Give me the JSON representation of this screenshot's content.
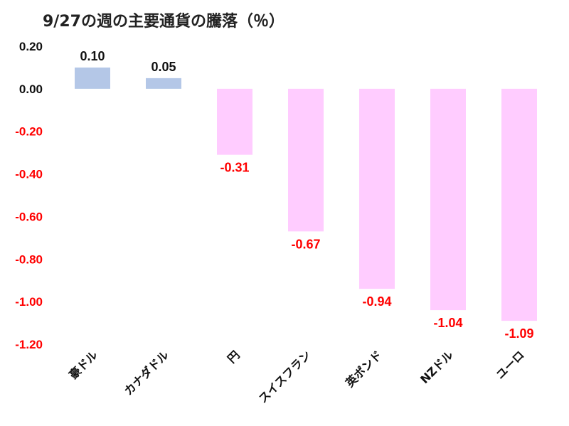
{
  "title": "9/27の週の主要通貨の騰落（％）",
  "colors": {
    "positive_bar": "#b4c7e7",
    "negative_bar": "#ffccff",
    "positive_text": "#111111",
    "negative_text": "#ff0000",
    "gridline": "#d9d9d9"
  },
  "chart_data": {
    "type": "bar",
    "title": "9/27の週の主要通貨の騰落（％）",
    "categories": [
      "豪ドル",
      "カナダドル",
      "円",
      "スイスフラン",
      "英ポンド",
      "NZドル",
      "ユーロ"
    ],
    "values": [
      0.1,
      0.05,
      -0.31,
      -0.67,
      -0.94,
      -1.04,
      -1.09
    ],
    "data_labels": [
      "0.10",
      "0.05",
      "-0.31",
      "-0.67",
      "-0.94",
      "-1.04",
      "-1.09"
    ],
    "ylim": [
      -1.2,
      0.2
    ],
    "yticks": [
      0.2,
      0.0,
      -0.2,
      -0.4,
      -0.6,
      -0.8,
      -1.0,
      -1.2
    ],
    "ytick_labels": [
      "0.20",
      "0.00",
      "-0.20",
      "-0.40",
      "-0.60",
      "-0.80",
      "-1.00",
      "-1.20"
    ],
    "grid": false,
    "legend": "none"
  }
}
